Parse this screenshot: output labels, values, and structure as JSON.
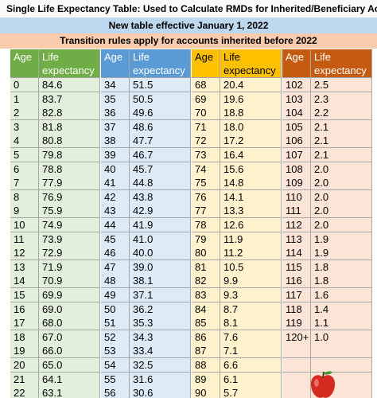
{
  "header": {
    "title": "Single Life Expectancy Table: Used to Calculate RMDs for Inherited/Beneficiary Accounts",
    "subtitle": "New table effective January 1, 2022",
    "note": "Transition rules apply for accounts inherited before 2022"
  },
  "table": {
    "groups": [
      {
        "headers": [
          "Age",
          "Life expectancy"
        ],
        "rows": [
          [
            "0",
            "84.6"
          ],
          [
            "1",
            "83.7"
          ],
          [
            "2",
            "82.8"
          ],
          [
            "3",
            "81.8"
          ],
          [
            "4",
            "80.8"
          ],
          [
            "5",
            "79.8"
          ],
          [
            "6",
            "78.8"
          ],
          [
            "7",
            "77.9"
          ],
          [
            "8",
            "76.9"
          ],
          [
            "9",
            "75.9"
          ],
          [
            "10",
            "74.9"
          ],
          [
            "11",
            "73.9"
          ],
          [
            "12",
            "72.9"
          ],
          [
            "13",
            "71.9"
          ],
          [
            "14",
            "70.9"
          ],
          [
            "15",
            "69.9"
          ],
          [
            "16",
            "69.0"
          ],
          [
            "17",
            "68.0"
          ],
          [
            "18",
            "67.0"
          ],
          [
            "19",
            "66.0"
          ],
          [
            "20",
            "65.0"
          ],
          [
            "21",
            "64.1"
          ],
          [
            "22",
            "63.1"
          ]
        ]
      },
      {
        "headers": [
          "Age",
          "Life expectancy"
        ],
        "rows": [
          [
            "34",
            "51.5"
          ],
          [
            "35",
            "50.5"
          ],
          [
            "36",
            "49.6"
          ],
          [
            "37",
            "48.6"
          ],
          [
            "38",
            "47.7"
          ],
          [
            "39",
            "46.7"
          ],
          [
            "40",
            "45.7"
          ],
          [
            "41",
            "44.8"
          ],
          [
            "42",
            "43.8"
          ],
          [
            "43",
            "42.9"
          ],
          [
            "44",
            "41.9"
          ],
          [
            "45",
            "41.0"
          ],
          [
            "46",
            "40.0"
          ],
          [
            "47",
            "39.0"
          ],
          [
            "48",
            "38.1"
          ],
          [
            "49",
            "37.1"
          ],
          [
            "50",
            "36.2"
          ],
          [
            "51",
            "35.3"
          ],
          [
            "52",
            "34.3"
          ],
          [
            "53",
            "33.4"
          ],
          [
            "54",
            "32.5"
          ],
          [
            "55",
            "31.6"
          ],
          [
            "56",
            "30.6"
          ]
        ]
      },
      {
        "headers": [
          "Age",
          "Life expectancy"
        ],
        "rows": [
          [
            "68",
            "20.4"
          ],
          [
            "69",
            "19.6"
          ],
          [
            "70",
            "18.8"
          ],
          [
            "71",
            "18.0"
          ],
          [
            "72",
            "17.2"
          ],
          [
            "73",
            "16.4"
          ],
          [
            "74",
            "15.6"
          ],
          [
            "75",
            "14.8"
          ],
          [
            "76",
            "14.1"
          ],
          [
            "77",
            "13.3"
          ],
          [
            "78",
            "12.6"
          ],
          [
            "79",
            "11.9"
          ],
          [
            "80",
            "11.2"
          ],
          [
            "81",
            "10.5"
          ],
          [
            "82",
            "9.9"
          ],
          [
            "83",
            "9.3"
          ],
          [
            "84",
            "8.7"
          ],
          [
            "85",
            "8.1"
          ],
          [
            "86",
            "7.6"
          ],
          [
            "87",
            "7.1"
          ],
          [
            "88",
            "6.6"
          ],
          [
            "89",
            "6.1"
          ],
          [
            "90",
            "5.7"
          ]
        ]
      },
      {
        "headers": [
          "Age",
          "Life expectancy"
        ],
        "rows": [
          [
            "102",
            "2.5"
          ],
          [
            "103",
            "2.3"
          ],
          [
            "104",
            "2.2"
          ],
          [
            "105",
            "2.1"
          ],
          [
            "106",
            "2.1"
          ],
          [
            "107",
            "2.1"
          ],
          [
            "108",
            "2.0"
          ],
          [
            "109",
            "2.0"
          ],
          [
            "110",
            "2.0"
          ],
          [
            "111",
            "2.0"
          ],
          [
            "112",
            "2.0"
          ],
          [
            "113",
            "1.9"
          ],
          [
            "114",
            "1.9"
          ],
          [
            "115",
            "1.8"
          ],
          [
            "116",
            "1.8"
          ],
          [
            "117",
            "1.6"
          ],
          [
            "118",
            "1.4"
          ],
          [
            "119",
            "1.1"
          ],
          [
            "120+",
            "1.0"
          ]
        ]
      }
    ]
  }
}
